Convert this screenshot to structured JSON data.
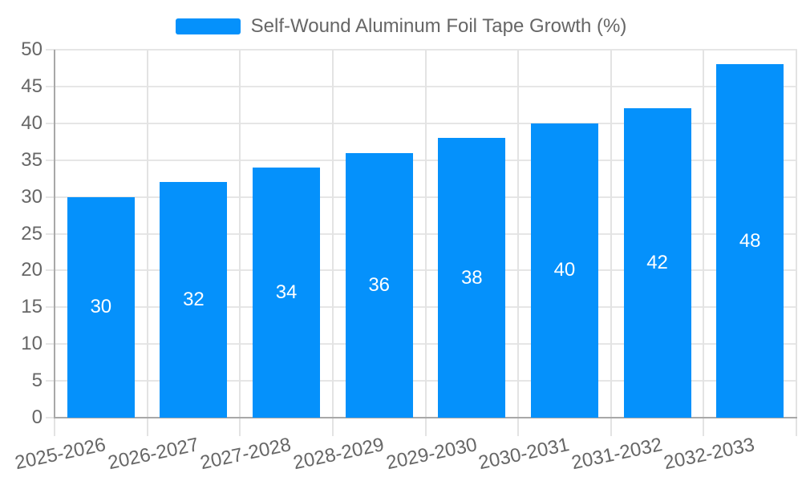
{
  "chart_data": {
    "type": "bar",
    "title": "Self-Wound Aluminum Foil Tape Growth (%)",
    "legend": {
      "position": "top-center",
      "label": "Self-Wound Aluminum Foil Tape Growth (%)"
    },
    "categories": [
      "2025-2026",
      "2026-2027",
      "2027-2028",
      "2028-2029",
      "2029-2030",
      "2030-2031",
      "2031-2032",
      "2032-2033"
    ],
    "values": [
      30,
      32,
      34,
      36,
      38,
      40,
      42,
      48
    ],
    "value_labels_visible": true,
    "xlabel": "",
    "ylabel": "",
    "ylim": [
      0,
      50
    ],
    "ytick_step": 5,
    "ytick_labels": [
      "0",
      "5",
      "10",
      "15",
      "20",
      "25",
      "30",
      "35",
      "40",
      "45",
      "50"
    ],
    "grid": "both",
    "x_label_rotation_deg": 12,
    "colors": {
      "bar": "#0591fb",
      "value_label": "#ffffff",
      "tick_label": "#666666",
      "legend_text": "#666666",
      "gridline": "#e6e6e6",
      "axis_line": "#a8a8a8",
      "background": "#ffffff"
    }
  }
}
